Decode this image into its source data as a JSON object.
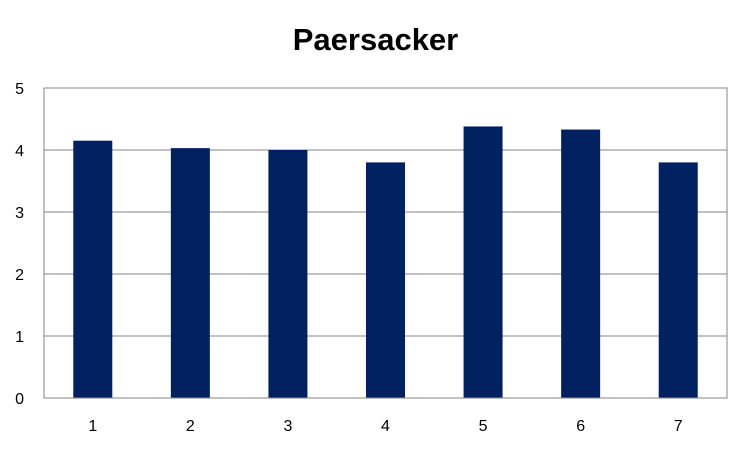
{
  "chart_data": {
    "type": "bar",
    "title": "Paersacker",
    "xlabel": "",
    "ylabel": "",
    "categories": [
      "1",
      "2",
      "3",
      "4",
      "5",
      "6",
      "7"
    ],
    "values": [
      4.15,
      4.03,
      4.0,
      3.8,
      4.38,
      4.33,
      3.8
    ],
    "ylim": [
      0,
      5
    ],
    "yticks": [
      "0",
      "1",
      "2",
      "3",
      "4",
      "5"
    ],
    "grid": true,
    "legend": "none",
    "bar_color": "#002060",
    "grid_color": "#868686"
  }
}
